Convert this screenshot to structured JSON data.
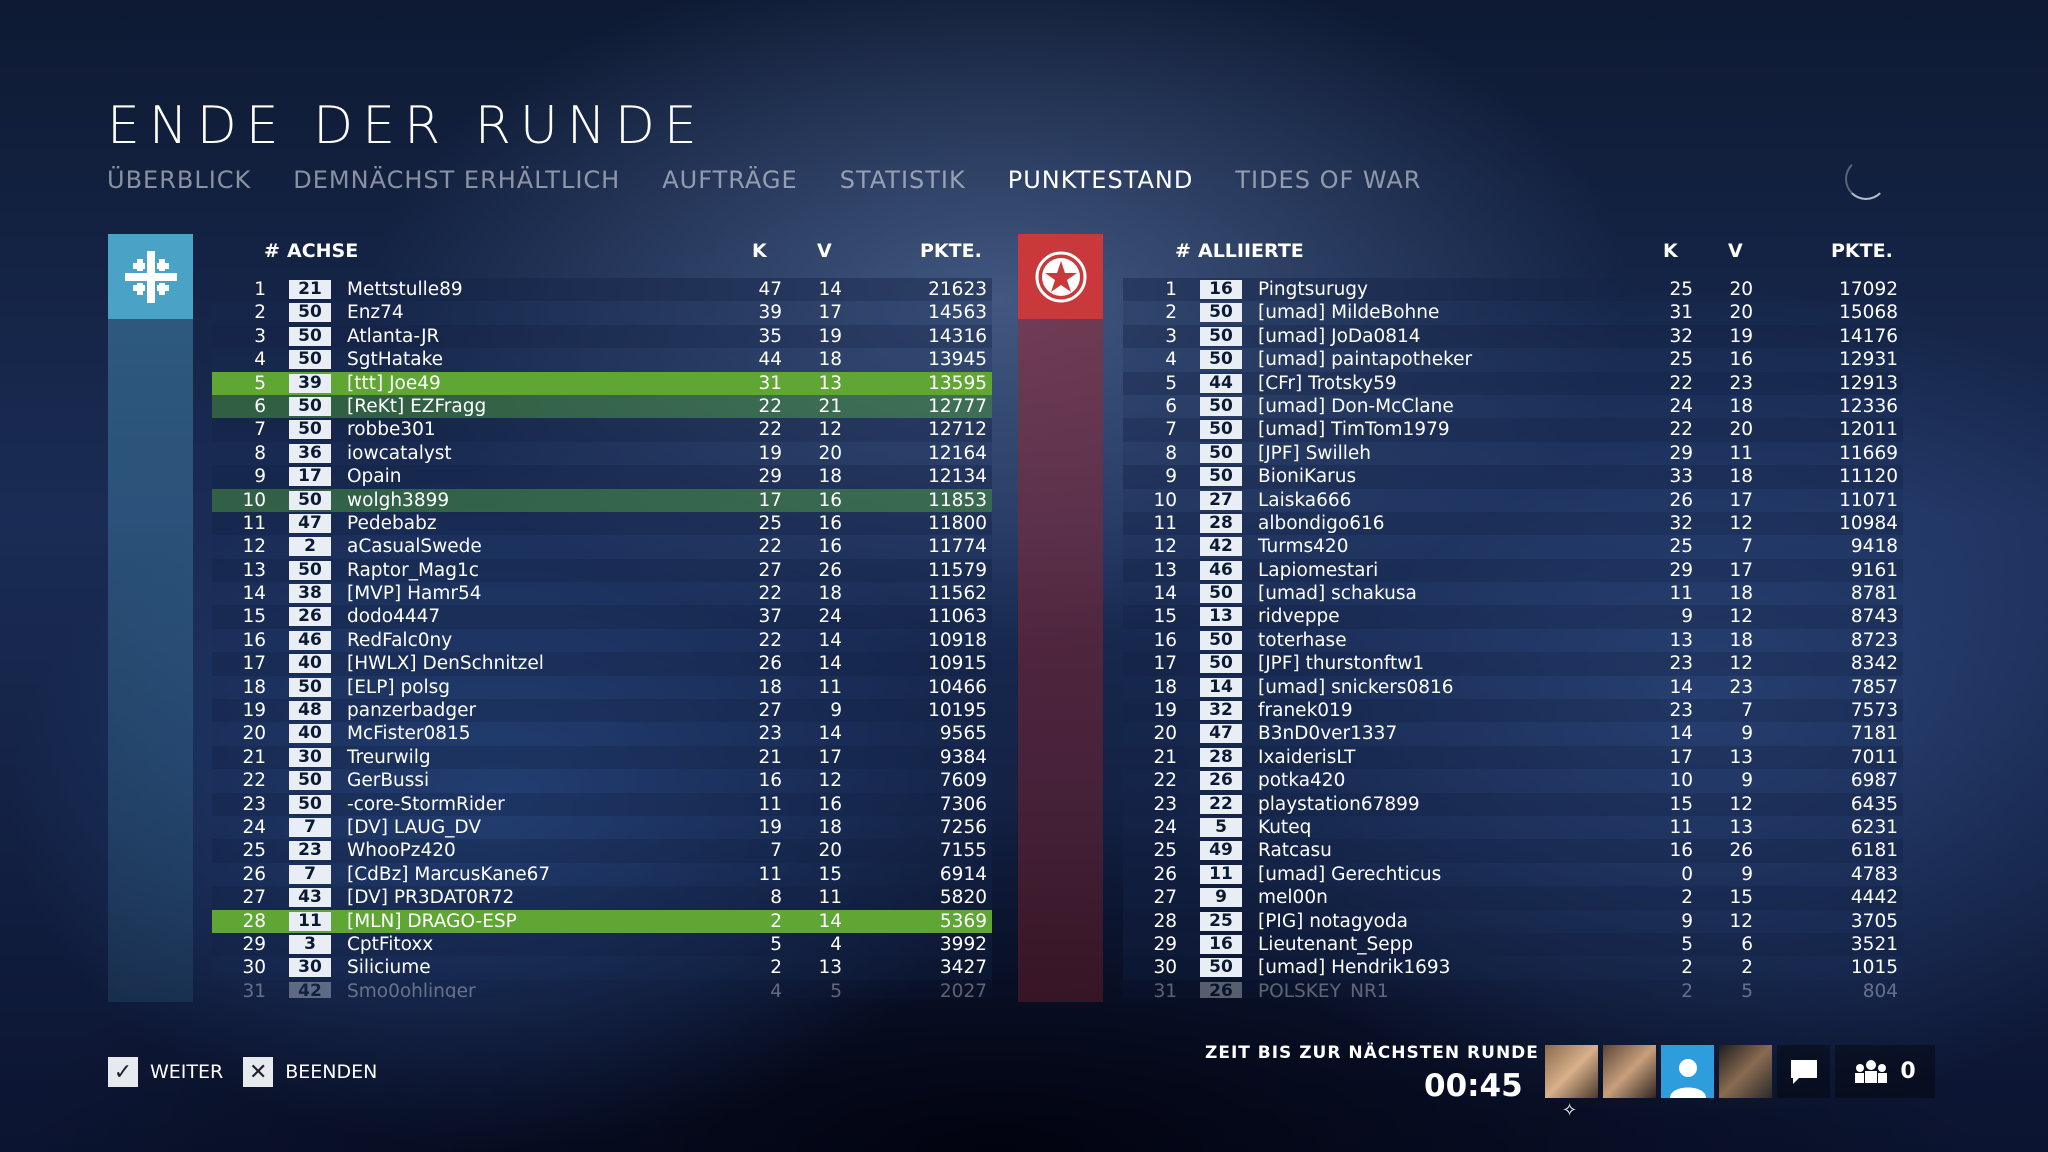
{
  "title": "ENDE DER RUNDE",
  "tabs": [
    "ÜBERBLICK",
    "DEMNÄCHST ERHÄLTLICH",
    "AUFTRÄGE",
    "STATISTIK",
    "PUNKTESTAND",
    "TIDES OF WAR"
  ],
  "active_tab": "PUNKTESTAND",
  "colors": {
    "axis": "#4aa2c7",
    "allies": "#c9393c",
    "highlight": "#5fa634"
  },
  "axis": {
    "header": {
      "hash": "#",
      "name": "ACHSE",
      "k": "K",
      "v": "V",
      "p": "PKTE."
    },
    "rows": [
      [
        "1",
        "21",
        "Mettstulle89",
        "47",
        "14",
        "21623"
      ],
      [
        "2",
        "50",
        "Enz74",
        "39",
        "17",
        "14563"
      ],
      [
        "3",
        "50",
        "Atlanta-JR",
        "35",
        "19",
        "14316"
      ],
      [
        "4",
        "50",
        "SgtHatake",
        "44",
        "18",
        "13945"
      ],
      [
        "5",
        "39",
        "[ttt] Joe49",
        "31",
        "13",
        "13595"
      ],
      [
        "6",
        "50",
        "[ReKt] EZFragg",
        "22",
        "21",
        "12777"
      ],
      [
        "7",
        "50",
        "robbe301",
        "22",
        "12",
        "12712"
      ],
      [
        "8",
        "36",
        "iowcatalyst",
        "19",
        "20",
        "12164"
      ],
      [
        "9",
        "17",
        "Opain",
        "29",
        "18",
        "12134"
      ],
      [
        "10",
        "50",
        "wolgh3899",
        "17",
        "16",
        "11853"
      ],
      [
        "11",
        "47",
        "Pedebabz",
        "25",
        "16",
        "11800"
      ],
      [
        "12",
        "2",
        "aCasualSwede",
        "22",
        "16",
        "11774"
      ],
      [
        "13",
        "50",
        "Raptor_Mag1c",
        "27",
        "26",
        "11579"
      ],
      [
        "14",
        "38",
        "[MVP] Hamr54",
        "22",
        "18",
        "11562"
      ],
      [
        "15",
        "26",
        "dodo4447",
        "37",
        "24",
        "11063"
      ],
      [
        "16",
        "46",
        "RedFalc0ny",
        "22",
        "14",
        "10918"
      ],
      [
        "17",
        "40",
        "[HWLX] DenSchnitzel",
        "26",
        "14",
        "10915"
      ],
      [
        "18",
        "50",
        "[ELP] polsg",
        "18",
        "11",
        "10466"
      ],
      [
        "19",
        "48",
        "panzerbadger",
        "27",
        "9",
        "10195"
      ],
      [
        "20",
        "40",
        "McFister0815",
        "23",
        "14",
        "9565"
      ],
      [
        "21",
        "30",
        "Treurwilg",
        "21",
        "17",
        "9384"
      ],
      [
        "22",
        "50",
        "GerBussi",
        "16",
        "12",
        "7609"
      ],
      [
        "23",
        "50",
        "-core-StormRider",
        "11",
        "16",
        "7306"
      ],
      [
        "24",
        "7",
        "[DV] LAUG_DV",
        "19",
        "18",
        "7256"
      ],
      [
        "25",
        "23",
        "WhooPz420",
        "7",
        "20",
        "7155"
      ],
      [
        "26",
        "7",
        "[CdBz] MarcusKane67",
        "11",
        "15",
        "6914"
      ],
      [
        "27",
        "43",
        "[DV] PR3DAT0R72",
        "8",
        "11",
        "5820"
      ],
      [
        "28",
        "11",
        "[MLN] DRAGO-ESP",
        "2",
        "14",
        "5369"
      ],
      [
        "29",
        "3",
        "CptFitoxx",
        "5",
        "4",
        "3992"
      ],
      [
        "30",
        "30",
        "Siliciume",
        "2",
        "13",
        "3427"
      ],
      [
        "31",
        "42",
        "Smo0ohlinger",
        "4",
        "5",
        "2027"
      ]
    ]
  },
  "allies": {
    "header": {
      "hash": "#",
      "name": "ALLIIERTE",
      "k": "K",
      "v": "V",
      "p": "PKTE."
    },
    "rows": [
      [
        "1",
        "16",
        "Pingtsurugy",
        "25",
        "20",
        "17092"
      ],
      [
        "2",
        "50",
        "[umad] MildeBohne",
        "31",
        "20",
        "15068"
      ],
      [
        "3",
        "50",
        "[umad] JoDa0814",
        "32",
        "19",
        "14176"
      ],
      [
        "4",
        "50",
        "[umad] paintapotheker",
        "25",
        "16",
        "12931"
      ],
      [
        "5",
        "44",
        "[CFr] Trotsky59",
        "22",
        "23",
        "12913"
      ],
      [
        "6",
        "50",
        "[umad] Don-McClane",
        "24",
        "18",
        "12336"
      ],
      [
        "7",
        "50",
        "[umad] TimTom1979",
        "22",
        "20",
        "12011"
      ],
      [
        "8",
        "50",
        "[JPF] Swilleh",
        "29",
        "11",
        "11669"
      ],
      [
        "9",
        "50",
        "BioniKarus",
        "33",
        "18",
        "11120"
      ],
      [
        "10",
        "27",
        "Laiska666",
        "26",
        "17",
        "11071"
      ],
      [
        "11",
        "28",
        "albondigo616",
        "32",
        "12",
        "10984"
      ],
      [
        "12",
        "42",
        "Turms420",
        "25",
        "7",
        "9418"
      ],
      [
        "13",
        "46",
        "Lapiomestari",
        "29",
        "17",
        "9161"
      ],
      [
        "14",
        "50",
        "[umad] schakusa",
        "11",
        "18",
        "8781"
      ],
      [
        "15",
        "13",
        "ridveppe",
        "9",
        "12",
        "8743"
      ],
      [
        "16",
        "50",
        "toterhase",
        "13",
        "18",
        "8723"
      ],
      [
        "17",
        "50",
        "[JPF] thurstonftw1",
        "23",
        "12",
        "8342"
      ],
      [
        "18",
        "14",
        "[umad] snickers0816",
        "14",
        "23",
        "7857"
      ],
      [
        "19",
        "32",
        "franek019",
        "23",
        "7",
        "7573"
      ],
      [
        "20",
        "47",
        "B3nD0ver1337",
        "14",
        "9",
        "7181"
      ],
      [
        "21",
        "28",
        "IxaiderisLT",
        "17",
        "13",
        "7011"
      ],
      [
        "22",
        "26",
        "potka420",
        "10",
        "9",
        "6987"
      ],
      [
        "23",
        "22",
        "playstation67899",
        "15",
        "12",
        "6435"
      ],
      [
        "24",
        "5",
        "Kuteq",
        "11",
        "13",
        "6231"
      ],
      [
        "25",
        "49",
        "Ratcasu",
        "16",
        "26",
        "6181"
      ],
      [
        "26",
        "11",
        "[umad] Gerechticus",
        "0",
        "9",
        "4783"
      ],
      [
        "27",
        "9",
        "mel00n",
        "2",
        "15",
        "4442"
      ],
      [
        "28",
        "25",
        "[PIG] notagyoda",
        "9",
        "12",
        "3705"
      ],
      [
        "29",
        "16",
        "Lieutenant_Sepp",
        "5",
        "6",
        "3521"
      ],
      [
        "30",
        "50",
        "[umad] Hendrik1693",
        "2",
        "2",
        "1015"
      ],
      [
        "31",
        "26",
        "POLSKEY_NR1",
        "2",
        "5",
        "804"
      ]
    ]
  },
  "footer": {
    "continue_label": "WEITER",
    "quit_label": "BEENDEN",
    "timer_label": "ZEIT BIS ZUR NÄCHSTEN RUNDE",
    "timer_value": "00:45",
    "squad_count": "0"
  }
}
